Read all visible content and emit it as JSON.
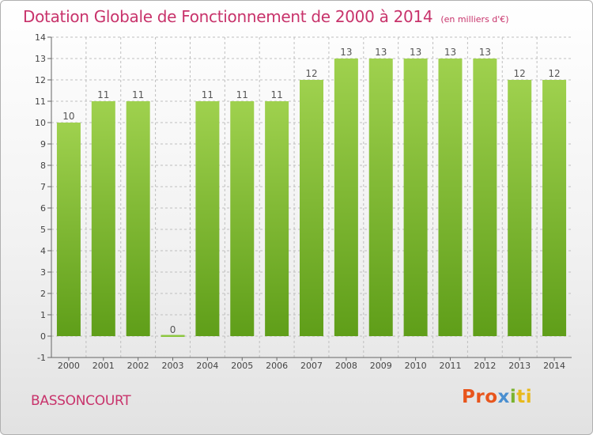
{
  "title": "Dotation Globale de Fonctionnement de 2000 à 2014",
  "unit": "(en milliers d'€)",
  "commune": "BASSONCOURT",
  "logo": {
    "text": "Proxiti",
    "parts": [
      "Pro",
      "x",
      "i",
      "ti"
    ]
  },
  "colors": {
    "title": "#c8336b",
    "bar_top": "#9fd14e",
    "bar_bottom": "#5f9e19",
    "zero_bar": "#8cc63f",
    "grid": "#bfbfbf"
  },
  "chart_data": {
    "type": "bar",
    "categories": [
      "2000",
      "2001",
      "2002",
      "2003",
      "2004",
      "2005",
      "2006",
      "2007",
      "2008",
      "2009",
      "2010",
      "2011",
      "2012",
      "2013",
      "2014"
    ],
    "values": [
      10,
      11,
      11,
      0,
      11,
      11,
      11,
      12,
      13,
      13,
      13,
      13,
      13,
      12,
      12
    ],
    "data_labels": [
      "10",
      "11",
      "11",
      "0",
      "11",
      "11",
      "11",
      "12",
      "13",
      "13",
      "13",
      "13",
      "13",
      "12",
      "12"
    ],
    "y_ticks": [
      {
        "value": -1,
        "label": "-1"
      },
      {
        "value": 0,
        "label": "0"
      },
      {
        "value": 1,
        "label": "1"
      },
      {
        "value": 2,
        "label": "2"
      },
      {
        "value": 3,
        "label": "3"
      },
      {
        "value": 4,
        "label": "4"
      },
      {
        "value": 5,
        "label": "5"
      },
      {
        "value": 6,
        "label": "6"
      },
      {
        "value": 7,
        "label": "7"
      },
      {
        "value": 8,
        "label": "8"
      },
      {
        "value": 9,
        "label": "9"
      },
      {
        "value": 10,
        "label": "10"
      },
      {
        "value": 11,
        "label": "11"
      },
      {
        "value": 12,
        "label": "12"
      },
      {
        "value": 13,
        "label": "13"
      },
      {
        "value": 14,
        "label": "14"
      }
    ],
    "ylim": [
      -1,
      14
    ],
    "grid": true,
    "grid_style": "dashed"
  }
}
